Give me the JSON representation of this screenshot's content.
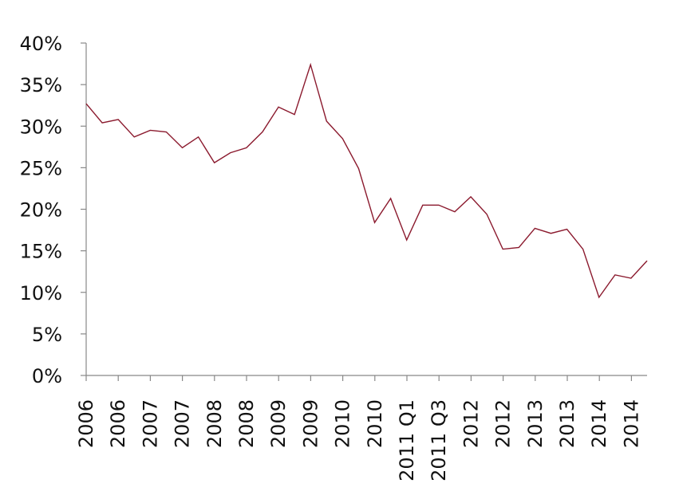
{
  "chart_data": {
    "type": "line",
    "title": "",
    "xlabel": "",
    "ylabel": "",
    "ylim": [
      0,
      40
    ],
    "y_ticks": [
      "0%",
      "5%",
      "10%",
      "15%",
      "20%",
      "25%",
      "30%",
      "35%",
      "40%"
    ],
    "grid": false,
    "x_tick_labels": [
      "2006",
      "2006",
      "2007",
      "2007",
      "2008",
      "2008",
      "2009",
      "2009",
      "2010",
      "2010",
      "2011 Q1",
      "2011 Q3",
      "2012",
      "2012",
      "2013",
      "2013",
      "2014",
      "2014"
    ],
    "series": [
      {
        "color": "#8b1a2e",
        "values": [
          32.7,
          30.4,
          30.8,
          28.7,
          29.5,
          29.3,
          27.4,
          28.7,
          25.6,
          26.8,
          27.4,
          29.3,
          32.3,
          31.4,
          37.4,
          30.6,
          28.5,
          24.9,
          18.4,
          21.3,
          16.3,
          20.5,
          20.5,
          19.7,
          21.5,
          19.4,
          15.2,
          15.4,
          17.7,
          17.1,
          17.6,
          15.2,
          9.4,
          12.1,
          11.7,
          13.8
        ]
      }
    ]
  }
}
